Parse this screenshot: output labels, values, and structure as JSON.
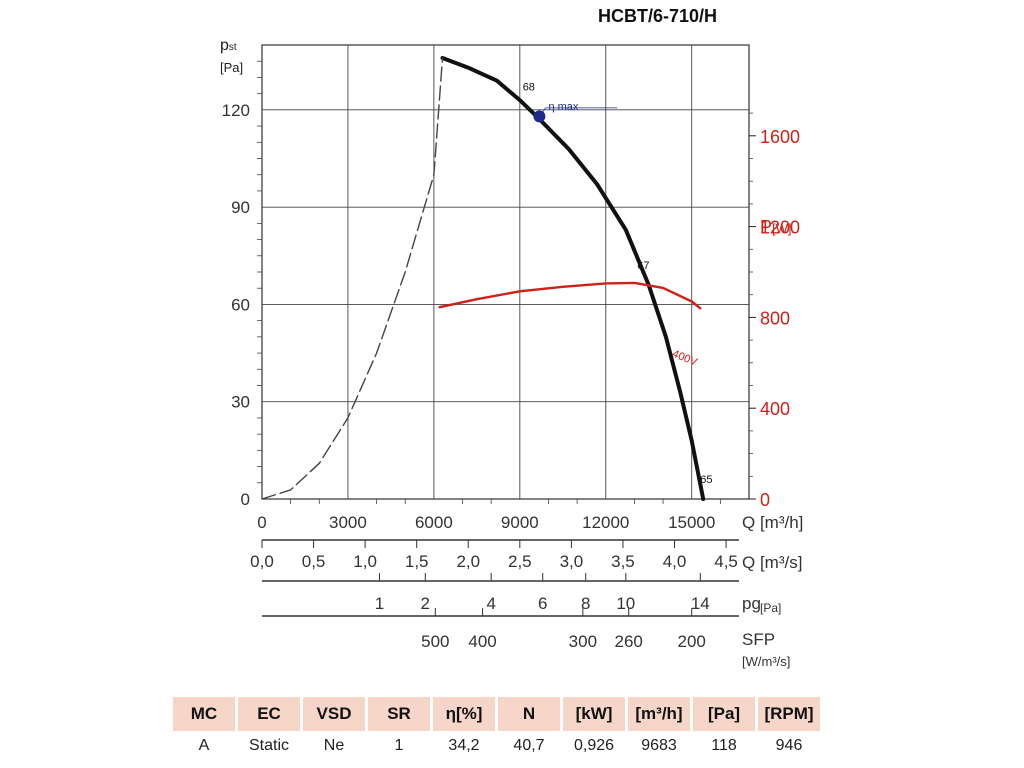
{
  "title": "HCBT/6-710/H",
  "chart_data": {
    "type": "line",
    "ylabel": {
      "symbol": "p",
      "sub": "st",
      "unit": "[Pa]"
    },
    "ylim": [
      0,
      140
    ],
    "yticks": [
      "0",
      "30",
      "60",
      "90",
      "120"
    ],
    "y2label": {
      "symbol": "P",
      "unit": "[W]"
    },
    "y2lim": [
      0,
      2000
    ],
    "y2ticks": [
      "0",
      "400",
      "800",
      "1200",
      "1600"
    ],
    "xlim": [
      0,
      17000
    ],
    "xticks": [
      "0",
      "3000",
      "6000",
      "9000",
      "12000",
      "15000"
    ],
    "xlabel": "Q [m³/h]",
    "secondary_axes": [
      {
        "label": "Q [m³/s]",
        "ticks": [
          {
            "q": 0,
            "label": "0,0"
          },
          {
            "q": 1800,
            "label": "0,5"
          },
          {
            "q": 3600,
            "label": "1,0"
          },
          {
            "q": 5400,
            "label": "1,5"
          },
          {
            "q": 7200,
            "label": "2,0"
          },
          {
            "q": 9000,
            "label": "2,5"
          },
          {
            "q": 10800,
            "label": "3,0"
          },
          {
            "q": 12600,
            "label": "3,5"
          },
          {
            "q": 14400,
            "label": "4,0"
          },
          {
            "q": 16200,
            "label": "4,5"
          }
        ]
      },
      {
        "label": "pg",
        "label_sub": "[Pa]",
        "ticks": [
          {
            "q": 4100,
            "label": "1"
          },
          {
            "q": 5700,
            "label": "2"
          },
          {
            "q": 8000,
            "label": "4"
          },
          {
            "q": 9800,
            "label": "6"
          },
          {
            "q": 11300,
            "label": "8"
          },
          {
            "q": 12700,
            "label": "10"
          },
          {
            "q": 15300,
            "label": "14"
          }
        ]
      },
      {
        "label": "SFP",
        "label2": "[W/m³/s]",
        "ticks": [
          {
            "q": 6050,
            "label": "500"
          },
          {
            "q": 7700,
            "label": "400"
          },
          {
            "q": 11200,
            "label": "300"
          },
          {
            "q": 12800,
            "label": "260"
          },
          {
            "q": 15000,
            "label": "200"
          }
        ]
      }
    ],
    "series": [
      {
        "name": "pst",
        "axis": "left",
        "style": "solid",
        "points": [
          [
            6300,
            136
          ],
          [
            7200,
            133
          ],
          [
            8200,
            129
          ],
          [
            9000,
            123
          ],
          [
            9700,
            117
          ],
          [
            10700,
            108
          ],
          [
            11700,
            97
          ],
          [
            12700,
            83
          ],
          [
            13500,
            66
          ],
          [
            14100,
            50
          ],
          [
            14600,
            33
          ],
          [
            15000,
            18
          ],
          [
            15400,
            0
          ]
        ]
      },
      {
        "name": "system-curve",
        "axis": "left",
        "style": "dashed",
        "points": [
          [
            0,
            0
          ],
          [
            1000,
            2.8
          ],
          [
            2000,
            11
          ],
          [
            3000,
            25
          ],
          [
            4000,
            45
          ],
          [
            5000,
            70
          ],
          [
            6000,
            100
          ],
          [
            6300,
            136
          ]
        ]
      },
      {
        "name": "power-400V",
        "axis": "right",
        "style": "red",
        "points": [
          [
            6200,
            845
          ],
          [
            7500,
            880
          ],
          [
            9000,
            915
          ],
          [
            10500,
            935
          ],
          [
            12000,
            950
          ],
          [
            13000,
            952
          ],
          [
            14000,
            930
          ],
          [
            15000,
            870
          ],
          [
            15300,
            840
          ]
        ]
      }
    ],
    "annotations": [
      {
        "text": "68",
        "q": 9100,
        "p": 126
      },
      {
        "text": "η max",
        "q": 10000,
        "p": 120
      },
      {
        "text": "67",
        "q": 13100,
        "p": 71
      },
      {
        "text": "65",
        "q": 15300,
        "p": 5
      },
      {
        "text": "400V",
        "q": 14300,
        "p": 44
      }
    ],
    "marker": {
      "label": "η max",
      "q": 9683,
      "p": 118
    }
  },
  "table": {
    "headers": [
      "MC",
      "EC",
      "VSD",
      "SR",
      "η[%]",
      "N",
      "[kW]",
      "[m³/h]",
      "[Pa]",
      "[RPM]"
    ],
    "row": [
      "A",
      "Static",
      "Ne",
      "1",
      "34,2",
      "40,7",
      "0,926",
      "9683",
      "118",
      "946"
    ]
  }
}
